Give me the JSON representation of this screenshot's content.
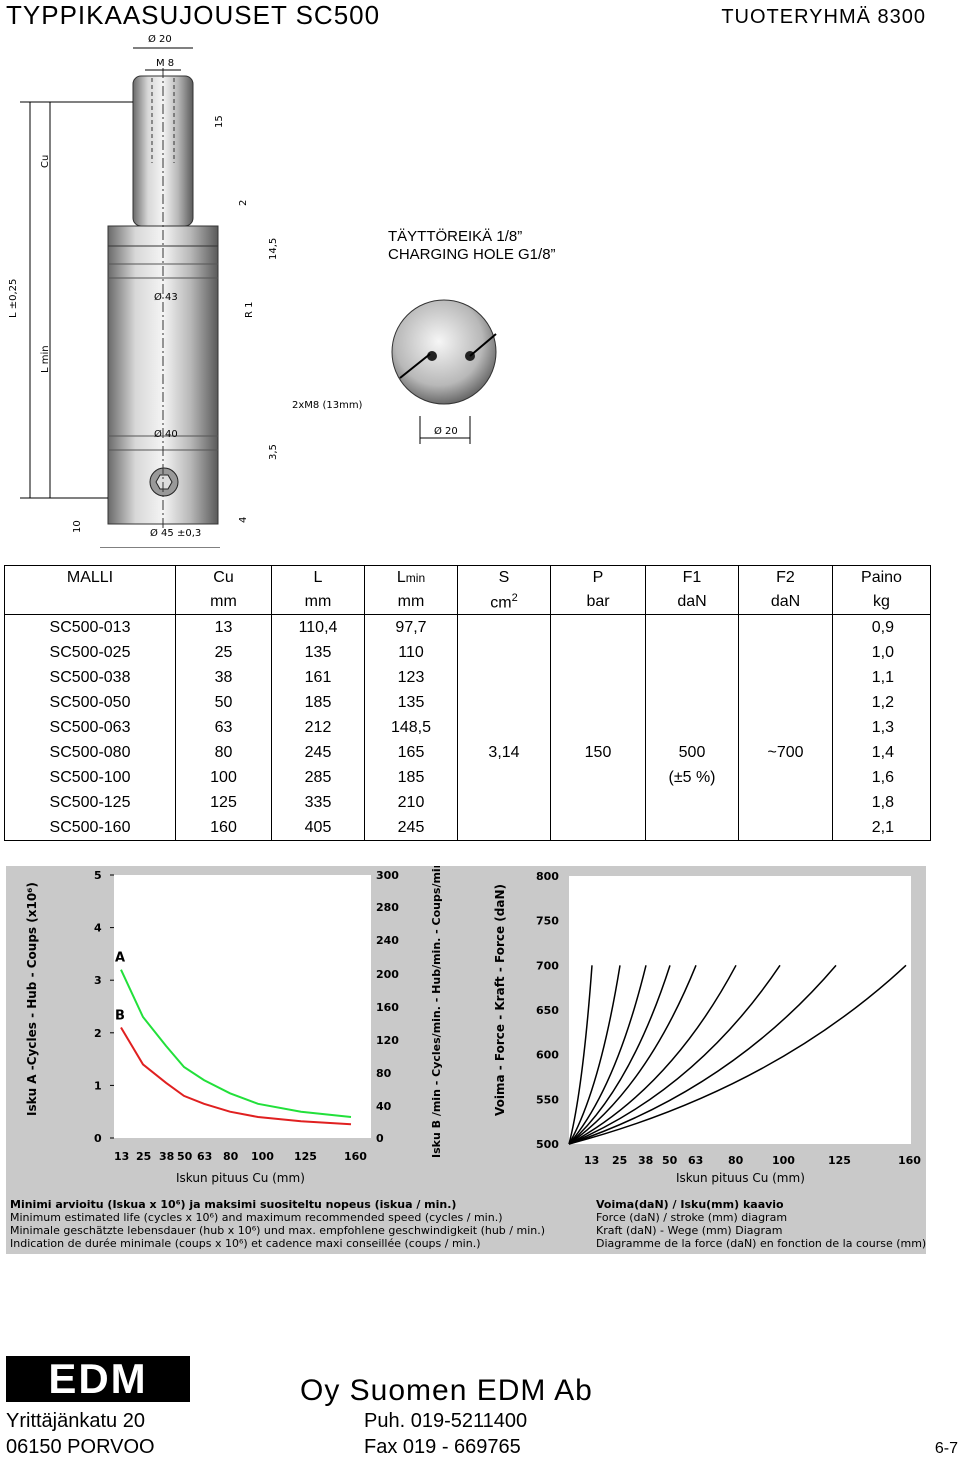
{
  "header": {
    "title": "TYPPIKAASUJOUSET  SC500",
    "group": "TUOTERYHMÄ 8300"
  },
  "drawing": {
    "fill_label_1": "TÄYTTÖREIKÄ 1/8”",
    "fill_label_2": "CHARGING HOLE G1/8”",
    "dims": {
      "d20_top": "Ø 20",
      "m8": "M 8",
      "d15": "15",
      "cu": "Cu",
      "d2": "2",
      "d14_5": "14,5",
      "l": "L ±0,25",
      "lmin": "L min",
      "d43": "Ø 43",
      "r1": "R 1",
      "d40": "Ø 40",
      "d3_5": "3,5",
      "d10": "10",
      "d4": "4",
      "d45": "Ø 45 ±0,3",
      "m8x2": "2xM8 (13mm)",
      "d20_bottom": "Ø 20"
    }
  },
  "table": {
    "headers": [
      "MALLI",
      "Cu",
      "L",
      "Lmin",
      "S",
      "P",
      "F1",
      "F2",
      "Paino"
    ],
    "units": [
      "",
      "mm",
      "mm",
      "mm",
      "cm2",
      "bar",
      "daN",
      "daN",
      "kg"
    ],
    "rows": [
      [
        "SC500-013",
        "13",
        "110,4",
        "97,7",
        "0,9"
      ],
      [
        "SC500-025",
        "25",
        "135",
        "110",
        "1,0"
      ],
      [
        "SC500-038",
        "38",
        "161",
        "123",
        "1,1"
      ],
      [
        "SC500-050",
        "50",
        "185",
        "135",
        "1,2"
      ],
      [
        "SC500-063",
        "63",
        "212",
        "148,5",
        "1,3"
      ],
      [
        "SC500-080",
        "80",
        "245",
        "165",
        "1,4"
      ],
      [
        "SC500-100",
        "100",
        "285",
        "185",
        "1,6"
      ],
      [
        "SC500-125",
        "125",
        "335",
        "210",
        "1,8"
      ],
      [
        "SC500-160",
        "160",
        "405",
        "245",
        "2,1"
      ]
    ],
    "common": {
      "S": "3,14",
      "P": "150",
      "F1": "500",
      "F1_tol": "(±5 %)",
      "F2": "~700"
    }
  },
  "chart_data": [
    {
      "type": "line",
      "y_label_left": "Isku A -Cycles - Hub - Coups  (x10⁶)",
      "y_label_right": "Isku B /min - Cycles/min. - Hub/min. - Coups/min",
      "xlabel": "Iskun pituus Cu (mm)",
      "x_ticks": [
        "13",
        "25",
        "38",
        "50",
        "63",
        "80",
        "100",
        "125",
        "160"
      ],
      "y_left_ticks": [
        "0",
        "1",
        "2",
        "3",
        "4",
        "5"
      ],
      "y_right_ticks": [
        "0",
        "40",
        "80",
        "120",
        "160",
        "200",
        "240",
        "280",
        "300"
      ],
      "ylim_left": [
        0,
        5
      ],
      "ylim_right": [
        0,
        300
      ],
      "series": [
        {
          "name": "A",
          "color": "#22e03a",
          "x": [
            13,
            25,
            38,
            50,
            63,
            80,
            100,
            125,
            160
          ],
          "y": [
            3.2,
            2.3,
            1.75,
            1.35,
            1.1,
            0.85,
            0.65,
            0.5,
            0.4
          ]
        },
        {
          "name": "B",
          "color": "#e02020",
          "x": [
            13,
            25,
            38,
            50,
            63,
            80,
            100,
            125,
            160
          ],
          "y": [
            2.1,
            1.4,
            1.05,
            0.8,
            0.65,
            0.5,
            0.4,
            0.32,
            0.26
          ]
        }
      ]
    },
    {
      "type": "line",
      "ylabel": "Voima - Force - Kraft - Force   (daN)",
      "xlabel": "Iskun pituus Cu (mm)",
      "x_ticks": [
        "13",
        "25",
        "38",
        "50",
        "63",
        "80",
        "100",
        "125",
        "160"
      ],
      "y_ticks": [
        "500",
        "550",
        "600",
        "650",
        "700",
        "750",
        "800"
      ],
      "ylim": [
        500,
        800
      ],
      "xlim": [
        0,
        160
      ],
      "series": [
        {
          "stroke": 13,
          "x": [
            0,
            13
          ],
          "y": [
            500,
            700
          ]
        },
        {
          "stroke": 25,
          "x": [
            0,
            25
          ],
          "y": [
            500,
            700
          ]
        },
        {
          "stroke": 38,
          "x": [
            0,
            38
          ],
          "y": [
            500,
            700
          ]
        },
        {
          "stroke": 50,
          "x": [
            0,
            50
          ],
          "y": [
            500,
            700
          ]
        },
        {
          "stroke": 63,
          "x": [
            0,
            63
          ],
          "y": [
            500,
            700
          ]
        },
        {
          "stroke": 80,
          "x": [
            0,
            80
          ],
          "y": [
            500,
            700
          ]
        },
        {
          "stroke": 100,
          "x": [
            0,
            100
          ],
          "y": [
            500,
            700
          ]
        },
        {
          "stroke": 125,
          "x": [
            0,
            125
          ],
          "y": [
            500,
            700
          ]
        },
        {
          "stroke": 160,
          "x": [
            0,
            160
          ],
          "y": [
            500,
            700
          ]
        }
      ]
    }
  ],
  "captions": {
    "left": [
      "Minimi arvioitu (Iskua x 10⁶) ja maksimi suositeltu nopeus (iskua / min.)",
      "Minimum estimated life (cycles x 10⁶) and maximum recommended speed (cycles / min.)",
      "Minimale geschätzte lebensdauer (hub x 10⁶) und max. empfohlene geschwindigkeit (hub / min.)",
      "Indication de durée minimale (coups x 10⁶) et cadence maxi conseillée (coups / min.)"
    ],
    "right": [
      "Voima(daN) / Isku(mm) kaavio",
      "Force (daN) / stroke (mm) diagram",
      "Kraft (daN) - Wege (mm) Diagram",
      "Diagramme de la force (daN) en fonction de la course (mm)"
    ]
  },
  "footer": {
    "logo": "EDM",
    "company": "Oy Suomen EDM Ab",
    "address1": "Yrittäjänkatu 20",
    "address2": "06150 PORVOO",
    "phone": "Puh. 019-5211400",
    "fax": "Fax  019 - 669765",
    "page": "6-7"
  }
}
